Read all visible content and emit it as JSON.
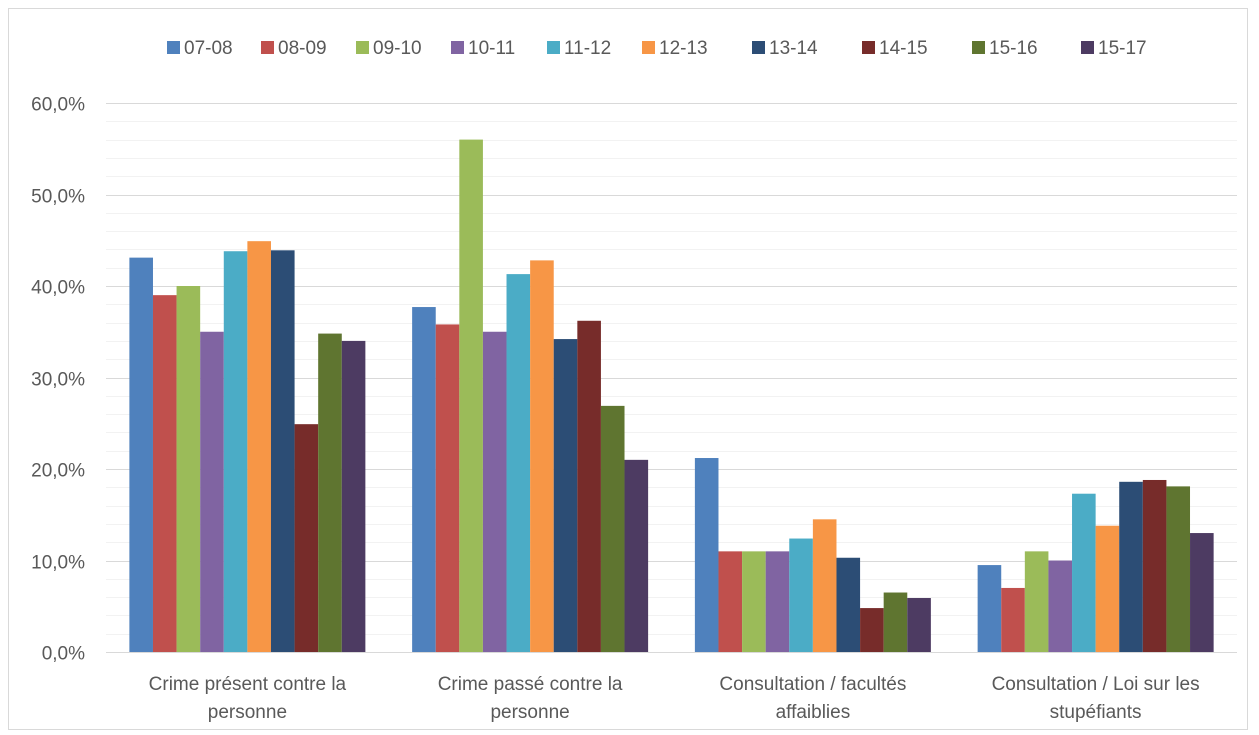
{
  "chart_data": {
    "type": "bar",
    "title": "",
    "xlabel": "",
    "ylabel": "",
    "ylim": [
      0,
      60
    ],
    "y_ticks": [
      "0,0%",
      "10,0%",
      "20,0%",
      "30,0%",
      "40,0%",
      "50,0%",
      "60,0%"
    ],
    "grid": true,
    "minor_grid": true,
    "legend_position": "top",
    "categories": [
      [
        "Crime présent contre la",
        "personne"
      ],
      [
        "Crime passé contre la",
        "personne"
      ],
      [
        "Consultation / facultés",
        "affaiblies"
      ],
      [
        "Consultation / Loi sur les",
        "stupéfiants"
      ]
    ],
    "series": [
      {
        "name": "07-08",
        "color": "#4f81bd",
        "values": [
          43.1,
          37.7,
          21.2,
          9.5
        ]
      },
      {
        "name": "08-09",
        "color": "#c0504d",
        "values": [
          39.0,
          35.8,
          11.0,
          7.0
        ]
      },
      {
        "name": "09-10",
        "color": "#9bbb59",
        "values": [
          40.0,
          56.0,
          11.0,
          11.0
        ]
      },
      {
        "name": "10-11",
        "color": "#8064a2",
        "values": [
          35.0,
          35.0,
          11.0,
          10.0
        ]
      },
      {
        "name": "11-12",
        "color": "#4bacc6",
        "values": [
          43.8,
          41.3,
          12.4,
          17.3
        ]
      },
      {
        "name": "12-13",
        "color": "#f79646",
        "values": [
          44.9,
          42.8,
          14.5,
          13.8
        ]
      },
      {
        "name": "13-14",
        "color": "#2c4d75",
        "values": [
          43.9,
          34.2,
          10.3,
          18.6
        ]
      },
      {
        "name": "14-15",
        "color": "#772c2a",
        "values": [
          24.9,
          36.2,
          4.8,
          18.8
        ]
      },
      {
        "name": "15-16",
        "color": "#5f7530",
        "values": [
          34.8,
          26.9,
          6.5,
          18.1
        ]
      },
      {
        "name": "15-17",
        "color": "#4d3b62",
        "values": [
          34.0,
          21.0,
          5.9,
          13.0
        ]
      }
    ]
  }
}
